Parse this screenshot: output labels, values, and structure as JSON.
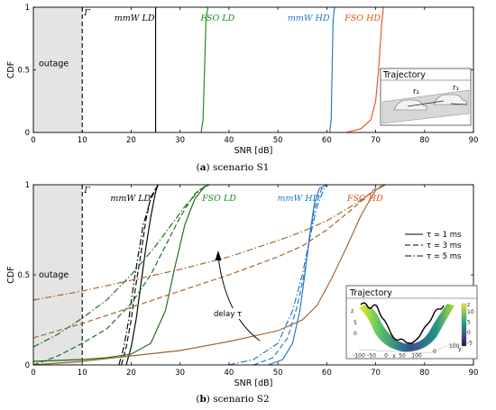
{
  "chart_data": [
    {
      "type": "line",
      "panel_label": "(a)",
      "caption": "scenario S1",
      "xlabel": "SNR [dB]",
      "ylabel": "CDF",
      "xlim": [
        0,
        90
      ],
      "ylim": [
        0,
        1
      ],
      "xticks": [
        "0",
        "10",
        "20",
        "30",
        "40",
        "50",
        "60",
        "70",
        "80",
        "90"
      ],
      "yticks": [
        "0",
        "0.5",
        "1"
      ],
      "outage_label": "outage",
      "outage_range": [
        0,
        10
      ],
      "threshold_label": "Γ",
      "threshold_x": 10,
      "series": [
        {
          "name": "mmW LD",
          "color": "#000000",
          "x": [
            25,
            25,
            25
          ],
          "y": [
            0,
            0.5,
            1
          ]
        },
        {
          "name": "FSO LD",
          "color": "#1a8a1a",
          "x": [
            34.3,
            34.7,
            35,
            35.3,
            35.7
          ],
          "y": [
            0,
            0.1,
            0.5,
            0.9,
            1
          ]
        },
        {
          "name": "mmW HD",
          "color": "#1f77c4",
          "x": [
            60.6,
            60.9,
            61.1,
            61.3,
            61.6
          ],
          "y": [
            0,
            0.1,
            0.5,
            0.9,
            1
          ]
        },
        {
          "name": "FSO HD",
          "color": "#e8541a",
          "x": [
            64,
            67,
            69,
            70,
            70.6,
            71.2,
            71.6
          ],
          "y": [
            0,
            0.03,
            0.1,
            0.25,
            0.5,
            0.85,
            1
          ]
        }
      ],
      "inset_title": "Trajectory",
      "inset_labels": [
        "r₂",
        "r₁"
      ]
    },
    {
      "type": "line",
      "panel_label": "(b)",
      "caption": "scenario S2",
      "xlabel": "SNR [dB]",
      "ylabel": "CDF",
      "xlim": [
        0,
        90
      ],
      "ylim": [
        0,
        1
      ],
      "xticks": [
        "0",
        "10",
        "20",
        "30",
        "40",
        "50",
        "60",
        "70",
        "80",
        "90"
      ],
      "yticks": [
        "0",
        "0.5",
        "1"
      ],
      "outage_label": "outage",
      "outage_range": [
        0,
        10
      ],
      "threshold_label": "Γ",
      "threshold_x": 10,
      "legend": [
        {
          "label": "τ = 1 ms",
          "dash": "solid"
        },
        {
          "label": "τ = 3 ms",
          "dash": "dashed"
        },
        {
          "label": "τ = 5 ms",
          "dash": "dashdot"
        }
      ],
      "annotation": "delay τ",
      "series_names": [
        "mmW LD",
        "FSO LD",
        "mmW HD",
        "FSO HD"
      ],
      "series": [
        {
          "name": "mmW LD",
          "tau": "1 ms",
          "color": "#000000",
          "dash": "solid",
          "x": [
            19,
            20,
            21,
            22,
            23,
            24,
            25,
            25.5
          ],
          "y": [
            0,
            0.1,
            0.25,
            0.45,
            0.65,
            0.82,
            0.96,
            1
          ]
        },
        {
          "name": "mmW LD",
          "tau": "3 ms",
          "color": "#000000",
          "dash": "dashed",
          "x": [
            18,
            19,
            20,
            21,
            22,
            23,
            24,
            25.5
          ],
          "y": [
            0,
            0.1,
            0.25,
            0.45,
            0.62,
            0.8,
            0.93,
            1
          ]
        },
        {
          "name": "mmW LD",
          "tau": "5 ms",
          "color": "#000000",
          "dash": "dashdot",
          "x": [
            17.5,
            18.5,
            19.5,
            20.5,
            21.5,
            22.5,
            24,
            25.5
          ],
          "y": [
            0,
            0.1,
            0.25,
            0.45,
            0.62,
            0.78,
            0.92,
            1
          ]
        },
        {
          "name": "FSO LD",
          "tau": "1 ms",
          "color": "#1a6a1a",
          "dash": "solid",
          "x": [
            0,
            10,
            15,
            20,
            24,
            27,
            29,
            31,
            33,
            35,
            36
          ],
          "y": [
            0.02,
            0.03,
            0.04,
            0.06,
            0.12,
            0.3,
            0.55,
            0.78,
            0.92,
            0.99,
            1
          ]
        },
        {
          "name": "FSO LD",
          "tau": "3 ms",
          "color": "#1a6a1a",
          "dash": "dashed",
          "x": [
            0,
            5,
            10,
            15,
            20,
            24,
            27,
            30,
            33,
            35,
            36
          ],
          "y": [
            0,
            0.05,
            0.12,
            0.2,
            0.34,
            0.5,
            0.66,
            0.82,
            0.95,
            0.99,
            1
          ]
        },
        {
          "name": "FSO LD",
          "tau": "5 ms",
          "color": "#1a6a1a",
          "dash": "dashdot",
          "x": [
            0,
            5,
            10,
            15,
            20,
            25,
            28,
            31,
            34,
            36
          ],
          "y": [
            0.1,
            0.17,
            0.26,
            0.36,
            0.5,
            0.66,
            0.77,
            0.88,
            0.97,
            1
          ]
        },
        {
          "name": "mmW HD",
          "tau": "1 ms",
          "color": "#1f77c4",
          "dash": "solid",
          "x": [
            48,
            51,
            53,
            54.5,
            55.5,
            56.5,
            57.5,
            58.5,
            60
          ],
          "y": [
            0,
            0.03,
            0.12,
            0.3,
            0.5,
            0.72,
            0.9,
            0.98,
            1
          ]
        },
        {
          "name": "mmW HD",
          "tau": "3 ms",
          "color": "#1f77c4",
          "dash": "dashed",
          "x": [
            45,
            49,
            52,
            54,
            55.5,
            56.5,
            57.5,
            59,
            60
          ],
          "y": [
            0,
            0.04,
            0.15,
            0.33,
            0.52,
            0.7,
            0.87,
            0.98,
            1
          ]
        },
        {
          "name": "mmW HD",
          "tau": "5 ms",
          "color": "#1f77c4",
          "dash": "dashdot",
          "x": [
            40,
            45,
            50,
            53,
            55,
            56.5,
            58,
            59.5,
            60
          ],
          "y": [
            0,
            0.03,
            0.12,
            0.3,
            0.5,
            0.7,
            0.88,
            0.98,
            1
          ]
        },
        {
          "name": "FSO HD",
          "tau": "1 ms",
          "color": "#a0622a",
          "dash": "solid",
          "x": [
            0,
            10,
            20,
            30,
            40,
            50,
            55,
            58,
            61,
            64,
            67,
            70,
            72
          ],
          "y": [
            0,
            0.02,
            0.05,
            0.08,
            0.13,
            0.19,
            0.25,
            0.33,
            0.48,
            0.65,
            0.83,
            0.97,
            1
          ]
        },
        {
          "name": "FSO HD",
          "tau": "3 ms",
          "color": "#a0622a",
          "dash": "dashed",
          "x": [
            0,
            10,
            20,
            30,
            40,
            50,
            55,
            60,
            65,
            70,
            72
          ],
          "y": [
            0.15,
            0.23,
            0.32,
            0.41,
            0.5,
            0.6,
            0.66,
            0.75,
            0.86,
            0.98,
            1
          ]
        },
        {
          "name": "FSO HD",
          "tau": "5 ms",
          "color": "#a0622a",
          "dash": "dashdot",
          "x": [
            0,
            10,
            20,
            30,
            40,
            50,
            55,
            60,
            65,
            70,
            72
          ],
          "y": [
            0.36,
            0.41,
            0.47,
            0.53,
            0.6,
            0.69,
            0.74,
            0.8,
            0.88,
            0.97,
            1
          ]
        }
      ],
      "inset_title": "Trajectory",
      "inset_axes": {
        "xlabel": "x",
        "ylabel": "y",
        "zlabel": "z",
        "xticks": [
          "-100",
          "-50",
          "0",
          "50",
          "100"
        ],
        "yticks": [
          "0",
          "100"
        ],
        "zticks": [
          "5",
          "0"
        ],
        "colorbar_ticks": [
          "10",
          "5",
          "0",
          "-5"
        ]
      }
    }
  ]
}
